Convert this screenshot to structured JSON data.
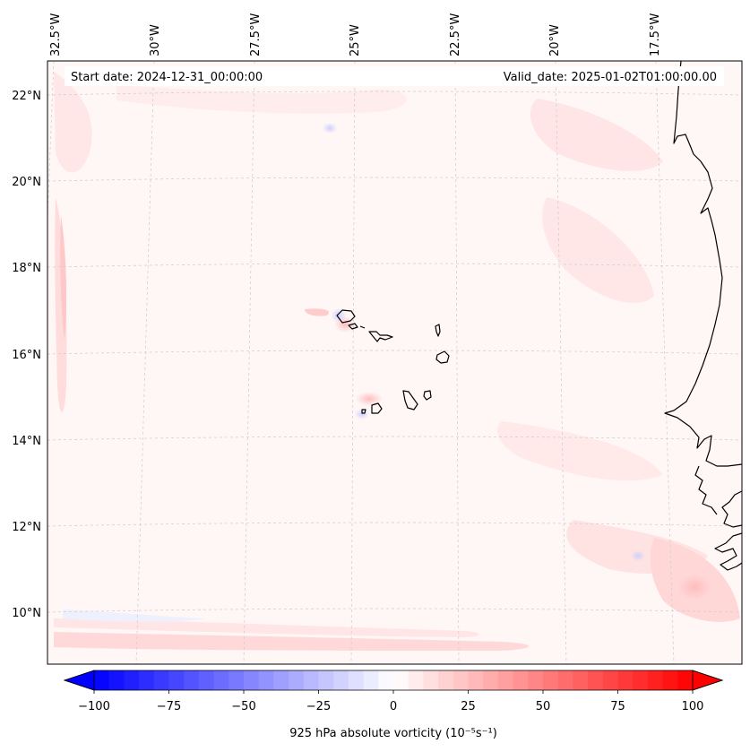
{
  "map": {
    "header": {
      "start_label": "Start date: 2024-12-31_00:00:00",
      "valid_label": "Valid_date: 2025-01-02T01:00:00.00"
    },
    "lon_labels": [
      "32.5°W",
      "30°W",
      "27.5°W",
      "25°W",
      "22.5°W",
      "20°W",
      "17.5°W"
    ],
    "lat_labels": [
      "22°N",
      "20°N",
      "18°N",
      "16°N",
      "14°N",
      "12°N",
      "10°N"
    ],
    "colorbar": {
      "ticks": [
        "−100",
        "−75",
        "−50",
        "−25",
        "0",
        "25",
        "50",
        "75",
        "100"
      ],
      "label": "925 hPa absolute vorticity (10⁻⁵s⁻¹)",
      "min": -100,
      "max": 100,
      "colors": {
        "negative": "#0000ff",
        "zero": "#ffffff",
        "positive": "#ff0000"
      }
    },
    "colors": {
      "ocean_fill": "#fff6f6",
      "coastline": "#000000",
      "gridline": "#cccccc"
    }
  }
}
